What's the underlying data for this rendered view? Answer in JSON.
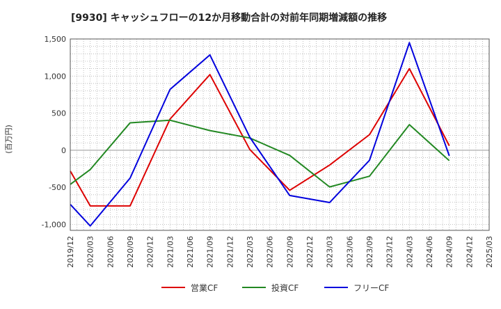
{
  "chart_data": {
    "type": "line",
    "title": "[9930]  キャッシュフローの12か月移動合計の対前年同期増減額の推移",
    "ylabel": "(百万円)",
    "xlabel": "",
    "ylim": [
      -1080,
      1500
    ],
    "yticks": [
      -1000,
      -500,
      0,
      500,
      1000,
      1500
    ],
    "ytick_labels": [
      "-1,000",
      "-500",
      "0",
      "500",
      "1,000",
      "1,500"
    ],
    "x_labels": [
      "2019/12",
      "2020/03",
      "2020/06",
      "2020/09",
      "2020/12",
      "2021/03",
      "2021/06",
      "2021/09",
      "2021/12",
      "2022/03",
      "2022/06",
      "2022/09",
      "2022/12",
      "2023/03",
      "2023/06",
      "2023/09",
      "2023/12",
      "2024/03",
      "2024/06",
      "2024/09",
      "2024/12",
      "2025/03"
    ],
    "grid": true,
    "legend_position": "bottom",
    "series": [
      {
        "name": "営業CF",
        "color": "#dd0000",
        "x": [
          "2019/12",
          "2020/03",
          "2020/06",
          "2020/09",
          "2021/03",
          "2021/09",
          "2022/03",
          "2022/09",
          "2023/03",
          "2023/09",
          "2024/03",
          "2024/09"
        ],
        "values": [
          -280,
          -750,
          -750,
          -750,
          420,
          1020,
          10,
          -540,
          -200,
          210,
          1100,
          60
        ]
      },
      {
        "name": "投資CF",
        "color": "#228822",
        "x": [
          "2019/12",
          "2020/03",
          "2020/09",
          "2021/03",
          "2021/09",
          "2022/03",
          "2022/09",
          "2023/03",
          "2023/09",
          "2024/03",
          "2024/09"
        ],
        "values": [
          -460,
          -260,
          370,
          405,
          265,
          165,
          -70,
          -495,
          -350,
          345,
          -140
        ]
      },
      {
        "name": "フリーCF",
        "color": "#0000dd",
        "x": [
          "2019/12",
          "2020/03",
          "2020/09",
          "2021/03",
          "2021/09",
          "2022/03",
          "2022/09",
          "2023/03",
          "2023/09",
          "2024/03",
          "2024/09"
        ],
        "values": [
          -730,
          -1020,
          -375,
          820,
          1285,
          175,
          -610,
          -705,
          -135,
          1450,
          -75
        ]
      }
    ]
  }
}
